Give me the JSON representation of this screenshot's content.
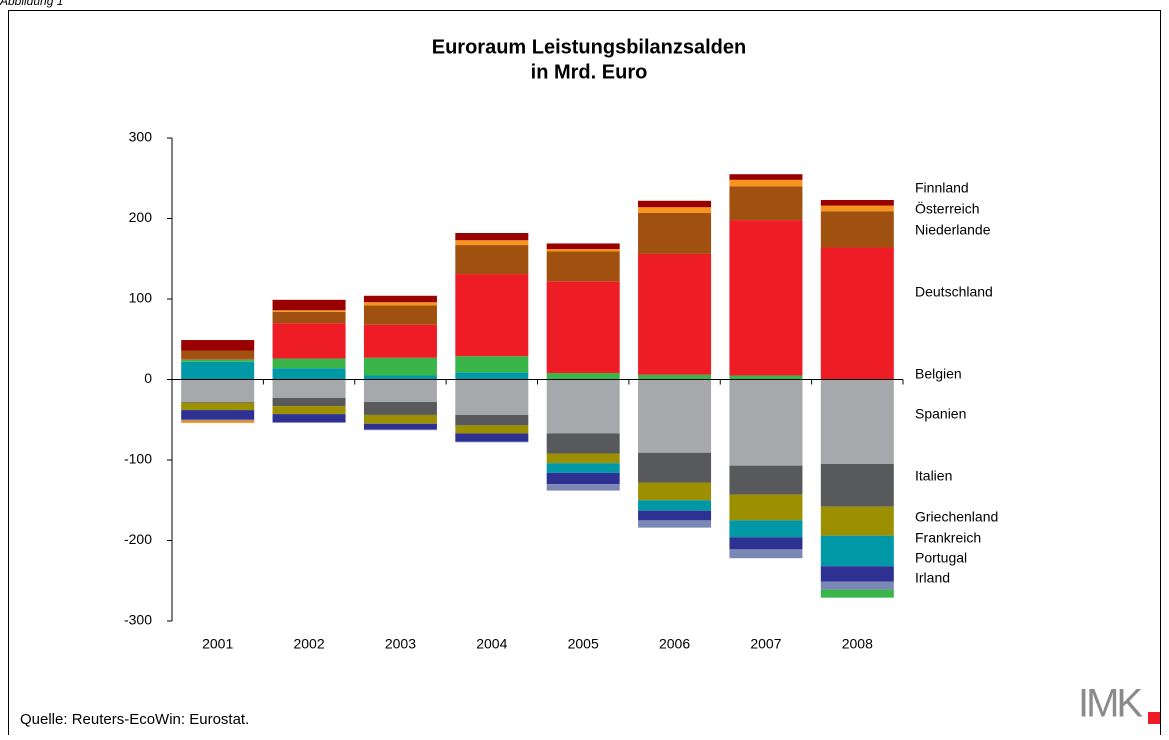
{
  "figure_label": "Abbildung 1",
  "source": "Quelle: Reuters-EcoWin: Eurostat.",
  "logo": "IMK",
  "chart_data": {
    "type": "stacked_bar",
    "title": [
      "Euroraum Leistungsbilanzsalden",
      "in Mrd. Euro"
    ],
    "categories": [
      "2001",
      "2002",
      "2003",
      "2004",
      "2005",
      "2006",
      "2007",
      "2008"
    ],
    "ylim": [
      -300,
      300
    ],
    "yticks": [
      -300,
      -200,
      -100,
      0,
      100,
      200,
      300
    ],
    "series": [
      {
        "name": "Finnland",
        "color": "#990000",
        "values": [
          13,
          13,
          8,
          9,
          7,
          8,
          7,
          7
        ]
      },
      {
        "name": "Österreich",
        "color": "#f7941d",
        "values": [
          -3,
          2,
          4,
          6,
          3,
          7,
          8,
          7
        ]
      },
      {
        "name": "Niederlande",
        "color": "#a0500f",
        "values": [
          10,
          14,
          24,
          36,
          37,
          51,
          42,
          45
        ]
      },
      {
        "name": "Deutschland",
        "color": "#ee1c25",
        "values": [
          1,
          44,
          41,
          102,
          114,
          150,
          193,
          164
        ]
      },
      {
        "name": "Belgien",
        "color": "#39b54a",
        "values": [
          3,
          12,
          22,
          20,
          8,
          6,
          5,
          -10
        ]
      },
      {
        "name": "Spanien",
        "color": "#a6a8ab",
        "values": [
          -28,
          -23,
          -28,
          -44,
          -67,
          -91,
          -107,
          -105
        ]
      },
      {
        "name": "Italien",
        "color": "#58595b",
        "values": [
          -1,
          -10,
          -16,
          -13,
          -25,
          -37,
          -36,
          -53
        ]
      },
      {
        "name": "Griechenland",
        "color": "#9c9000",
        "values": [
          -9,
          -10,
          -11,
          -10,
          -12,
          -22,
          -32,
          -36
        ]
      },
      {
        "name": "Frankreich",
        "color": "#0097a7",
        "values": [
          22,
          14,
          5,
          9,
          -12,
          -13,
          -21,
          -38
        ]
      },
      {
        "name": "Portugal",
        "color": "#2e3192",
        "values": [
          -12,
          -10,
          -7,
          -10,
          -14,
          -12,
          -15,
          -19
        ]
      },
      {
        "name": "Irland",
        "color": "#7b87b5",
        "values": [
          -1,
          -1,
          -1,
          -1,
          -8,
          -9,
          -11,
          -10
        ]
      }
    ]
  }
}
